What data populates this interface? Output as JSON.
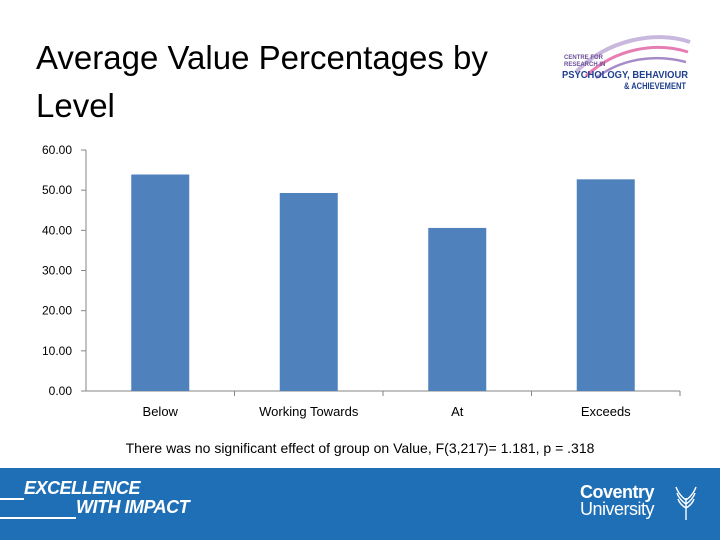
{
  "title": "Average Value Percentages by Level",
  "logo": {
    "line1": "CENTRE FOR",
    "line2": "RESEARCH IN",
    "line3": "PSYCHOLOGY, BEHAVIOUR",
    "line4": "& ACHIEVEMENT"
  },
  "chart_data": {
    "type": "bar",
    "categories": [
      "Below",
      "Working Towards",
      "At",
      "Exceeds"
    ],
    "values": [
      53.9,
      49.3,
      40.6,
      52.7
    ],
    "yticks": [
      "0.00",
      "10.00",
      "20.00",
      "30.00",
      "40.00",
      "50.00",
      "60.00"
    ],
    "ylim": [
      0,
      60
    ],
    "bar_color": "#4f81bd",
    "title": "",
    "xlabel": "",
    "ylabel": ""
  },
  "caption": "There was no significant effect of group on Value, F(3,217)= 1.181, p = .318",
  "footer": {
    "slogan_line1": "EXCELLENCE",
    "slogan_line2": "WITH IMPACT",
    "university_line1": "Coventry",
    "university_line2": "University",
    "background": "#1f6fb6"
  }
}
